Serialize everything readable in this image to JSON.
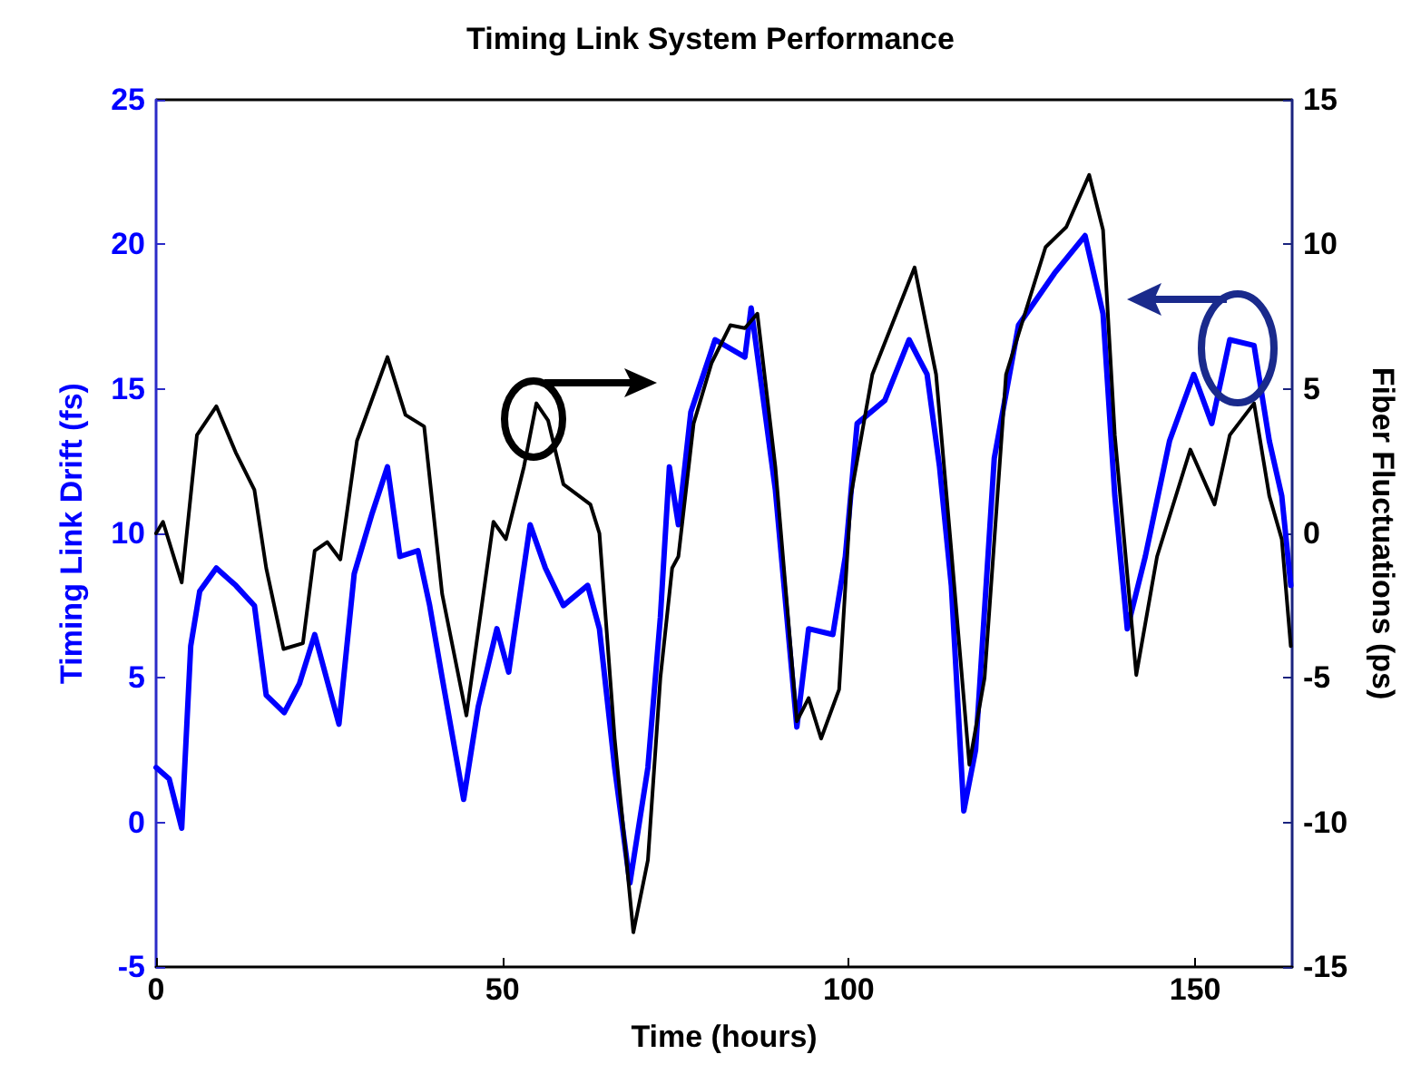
{
  "chart_data": {
    "type": "line",
    "title": "Timing Link System Performance",
    "xlabel": "Time (hours)",
    "ylabel": "Timing Link Drift (fs)",
    "y2label": "Fiber Fluctuations (ps)",
    "xlim": [
      0,
      164
    ],
    "xticks": [
      0,
      50,
      100,
      150
    ],
    "ylim": [
      -5,
      25
    ],
    "yticks": [
      -5,
      0,
      5,
      10,
      15,
      20,
      25
    ],
    "y2lim": [
      -15,
      15
    ],
    "y2ticks": [
      -15,
      -10,
      -5,
      0,
      5,
      10,
      15
    ],
    "grid": false,
    "marker": "none",
    "line_style": "solid",
    "series": [
      {
        "color": "#0000ff",
        "axis": "y",
        "x": [
          0,
          1.9,
          3.7,
          5,
          6.3,
          8.7,
          11.5,
          14.2,
          15.9,
          18.5,
          20.7,
          22.9,
          26.4,
          28.6,
          31.2,
          33.4,
          35.2,
          37.8,
          39.5,
          41.3,
          44.4,
          46.5,
          49.2,
          50.9,
          54,
          56.2,
          58.8,
          62.3,
          64,
          66.2,
          68.4,
          71,
          72.8,
          74.1,
          75.4,
          77.2,
          80.7,
          85,
          85.9,
          89.4,
          92.5,
          94.2,
          97.7,
          99.5,
          101.2,
          105.2,
          108.7,
          111.3,
          113.1,
          114.8,
          116.6,
          118.3,
          121,
          124.5,
          129.7,
          134.1,
          136.7,
          138.4,
          140.2,
          142.8,
          146.3,
          149.8,
          152.4,
          155,
          158.5,
          160.7,
          162.5,
          163.8
        ],
        "values": [
          1.9,
          1.5,
          -0.2,
          6.1,
          8,
          8.8,
          8.2,
          7.5,
          4.4,
          3.8,
          4.8,
          6.5,
          3.4,
          8.6,
          10.7,
          12.3,
          9.2,
          9.4,
          7.5,
          5,
          0.8,
          4,
          6.7,
          5.2,
          10.3,
          8.8,
          7.5,
          8.2,
          6.7,
          1.9,
          -2.1,
          1.9,
          7.1,
          12.3,
          10.3,
          14.2,
          16.7,
          16.1,
          17.8,
          11.5,
          3.3,
          6.7,
          6.5,
          9.2,
          13.8,
          14.6,
          16.7,
          15.5,
          12.3,
          8.2,
          0.4,
          2.5,
          12.6,
          17.2,
          19,
          20.3,
          17.6,
          11.3,
          6.7,
          9.2,
          13.2,
          15.5,
          13.8,
          16.7,
          16.5,
          13.2,
          11.3,
          8.2
        ]
      },
      {
        "color": "#000000",
        "axis": "y2",
        "x": [
          0,
          1,
          3.7,
          5.9,
          8.7,
          11.5,
          14.2,
          15.9,
          18.4,
          21.2,
          22.9,
          24.7,
          26.6,
          29,
          33.4,
          36,
          38.7,
          41.3,
          44.8,
          48.7,
          50.5,
          53.1,
          54.9,
          56.6,
          58.8,
          62.7,
          64,
          66.2,
          68.9,
          71,
          72.8,
          74.5,
          75.4,
          77.6,
          80.2,
          82.9,
          85,
          86.8,
          89.4,
          92.5,
          94.2,
          96,
          98.6,
          100.3,
          103.4,
          109.5,
          112.6,
          114.8,
          117.4,
          119.6,
          122.7,
          128.4,
          131.4,
          134.7,
          136.7,
          138.4,
          141.5,
          144.5,
          149.3,
          152.8,
          155,
          158.5,
          160.7,
          162.5,
          163.8
        ],
        "values": [
          0,
          0.4,
          -1.7,
          3.4,
          4.4,
          2.8,
          1.5,
          -1.2,
          -4,
          -3.8,
          -0.6,
          -0.3,
          -0.9,
          3.2,
          6.1,
          4.1,
          3.7,
          -2.1,
          -6.3,
          0.4,
          -0.2,
          2.3,
          4.5,
          3.9,
          1.7,
          1,
          0,
          -7.1,
          -13.8,
          -11.3,
          -5,
          -1.2,
          -0.8,
          3.8,
          5.9,
          7.2,
          7.1,
          7.6,
          2.3,
          -6.5,
          -5.7,
          -7.1,
          -5.4,
          1.3,
          5.5,
          9.2,
          5.5,
          -0.6,
          -8,
          -5,
          5.5,
          9.9,
          10.6,
          12.4,
          10.5,
          3.4,
          -4.9,
          -0.8,
          2.9,
          1,
          3.4,
          4.5,
          1.3,
          -0.2,
          -3.9
        ]
      }
    ]
  }
}
